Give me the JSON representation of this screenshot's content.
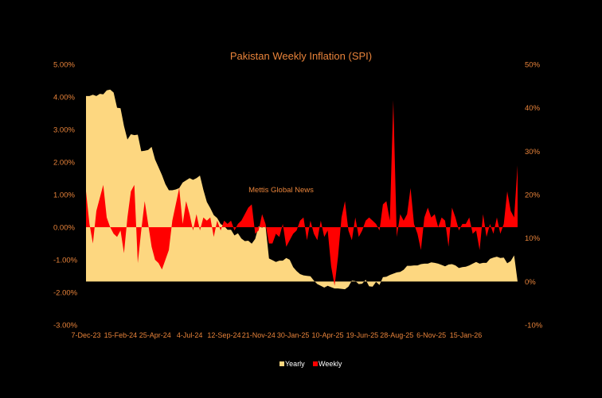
{
  "chart_data": {
    "type": "area",
    "title": "Pakistan Weekly Inflation (SPI)",
    "watermark": "Mettis Global News",
    "x_tick_labels": [
      "7-Dec-23",
      "15-Feb-24",
      "25-Apr-24",
      "4-Jul-24",
      "12-Sep-24",
      "21-Nov-24",
      "30-Jan-25",
      "10-Apr-25",
      "19-Jun-25",
      "28-Aug-25",
      "6-Nov-25",
      "15-Jan-26"
    ],
    "left_axis": {
      "series": "Weekly",
      "range": [
        -3.0,
        5.0
      ],
      "tick_labels": [
        "5.00%",
        "4.00%",
        "3.00%",
        "2.00%",
        "1.00%",
        "0.00%",
        "-1.00%",
        "-2.00%",
        "-3.00%"
      ]
    },
    "right_axis": {
      "series": "Yearly",
      "range": [
        -10,
        50
      ],
      "tick_labels": [
        "50%",
        "40%",
        "30%",
        "20%",
        "10%",
        "0%",
        "-10%"
      ]
    },
    "grid": false,
    "legend_position": "bottom",
    "legend": [
      {
        "label": "Yearly",
        "color": "#fdd780"
      },
      {
        "label": "Weekly",
        "color": "#ff0000"
      }
    ],
    "series": [
      {
        "name": "Yearly",
        "axis": "right",
        "color": "#fdd780",
        "values": [
          42.7,
          42.7,
          43.0,
          42.7,
          43.2,
          43.1,
          44.0,
          44.2,
          43.5,
          40.0,
          39.9,
          35.8,
          32.7,
          33.9,
          33.7,
          33.8,
          30.0,
          30.1,
          30.3,
          31.0,
          28.1,
          26.3,
          24.5,
          22.4,
          21.0,
          21.0,
          21.2,
          21.5,
          22.8,
          23.3,
          23.8,
          23.4,
          23.8,
          24.4,
          21.1,
          18.3,
          16.9,
          15.3,
          14.6,
          13.2,
          12.8,
          11.9,
          11.9,
          10.6,
          11.1,
          9.9,
          9.3,
          9.4,
          8.7,
          9.8,
          12.7,
          12.4,
          12.8,
          5.3,
          4.9,
          4.5,
          4.8,
          4.8,
          5.4,
          5.0,
          3.3,
          2.4,
          1.7,
          1.4,
          1.3,
          1.2,
          0.2,
          -0.6,
          -1.0,
          -1.4,
          -1.0,
          -1.3,
          -1.6,
          -1.6,
          -1.7,
          -1.8,
          -1.2,
          0.2,
          0.1,
          -0.6,
          -0.5,
          0.4,
          -1.1,
          -1.2,
          -0.1,
          -0.8,
          1.0,
          1.1,
          1.5,
          1.8,
          2.1,
          2.2,
          2.7,
          3.6,
          3.6,
          3.7,
          3.7,
          4.0,
          4.1,
          4.1,
          4.4,
          4.3,
          4.1,
          3.8,
          3.5,
          3.9,
          4.0,
          3.7,
          3.1,
          3.3,
          3.4,
          3.7,
          4.1,
          4.5,
          4.1,
          4.3,
          4.3,
          5.2,
          5.5,
          5.7,
          5.4,
          5.5,
          4.2,
          4.7,
          6.0
        ]
      },
      {
        "name": "Weekly",
        "axis": "left",
        "color": "#ff0000",
        "values": [
          1.1,
          0.1,
          -0.5,
          0.5,
          0.9,
          1.3,
          0.3,
          0.0,
          -0.2,
          -0.3,
          -0.1,
          -0.8,
          0.3,
          1.1,
          1.3,
          -1.1,
          -0.1,
          0.8,
          0.1,
          -0.6,
          -1.0,
          -1.1,
          -1.3,
          -1.0,
          -0.7,
          0.2,
          0.7,
          1.2,
          0.1,
          0.8,
          0.4,
          -0.1,
          0.4,
          -0.1,
          0.3,
          0.2,
          0.3,
          -0.3,
          0.2,
          -0.1,
          0.2,
          0.1,
          0.2,
          -0.1,
          0.1,
          0.2,
          0.4,
          0.6,
          0.7,
          -0.2,
          -0.1,
          0.4,
          0.1,
          -0.5,
          -0.5,
          -0.2,
          -0.3,
          0.1,
          -0.6,
          -0.4,
          -0.2,
          -0.1,
          0.2,
          0.3,
          -0.4,
          0.2,
          -0.2,
          -0.4,
          0.2,
          -0.3,
          -0.1,
          -1.2,
          -1.8,
          -0.9,
          0.3,
          0.8,
          -0.1,
          -0.4,
          0.3,
          -0.3,
          -0.1,
          0.2,
          0.3,
          0.2,
          0.1,
          -0.1,
          0.7,
          0.8,
          0.2,
          3.9,
          -0.3,
          0.4,
          0.2,
          0.4,
          1.2,
          0.1,
          -0.2,
          -0.7,
          0.3,
          0.6,
          0.3,
          0.4,
          0.0,
          0.3,
          0.2,
          -0.6,
          0.6,
          0.3,
          -0.1,
          0.1,
          0.1,
          0.3,
          -0.2,
          -0.1,
          -0.7,
          0.4,
          -0.3,
          0.1,
          -0.2,
          0.3,
          -0.2,
          0.1,
          1.1,
          0.5,
          0.3,
          1.9
        ]
      }
    ]
  }
}
